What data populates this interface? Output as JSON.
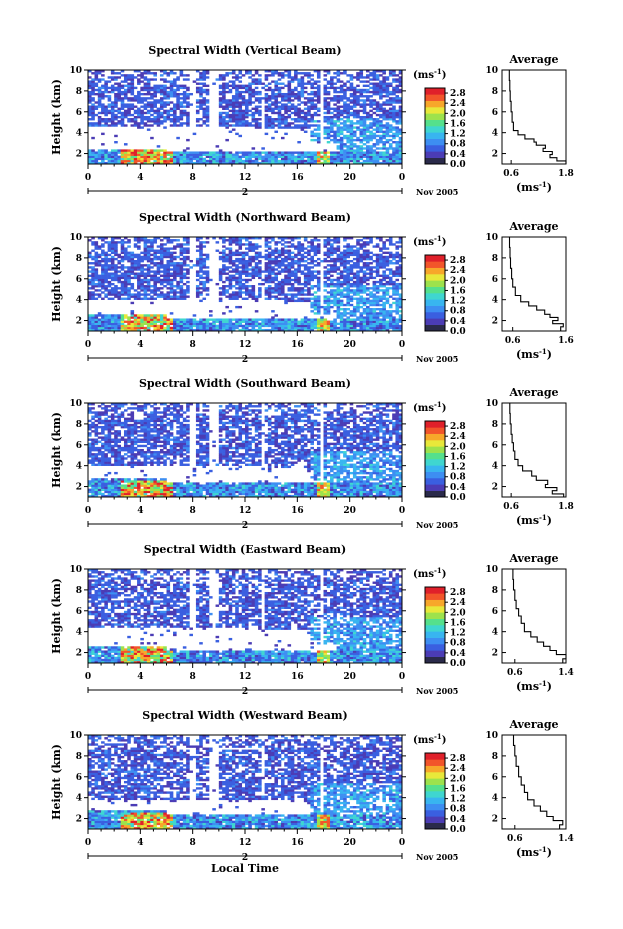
{
  "panel_titles": [
    "Spectral Width (Vertical Beam)",
    "Spectral Width (Northward Beam)",
    "Spectral Width (Southward Beam)",
    "Spectral Width (Eastward Beam)",
    "Spectral Width (Westward Beam)"
  ],
  "y_axis_label": "Height (km)",
  "x_axis_label": "Local Time",
  "date_label": "Nov 2005",
  "day_label": "2",
  "colorbar_unit_prefix": "(ms",
  "colorbar_unit_exp": "-1",
  "colorbar_unit_suffix": ")",
  "average_title": "Average",
  "average_xlabel_prefix": "(ms",
  "average_xlabel_exp": "-1",
  "average_xlabel_suffix": ")",
  "colors": {
    "colormap": [
      "#2a2a4a",
      "#4b3cb5",
      "#3a5fe0",
      "#3d8ef2",
      "#38b5f0",
      "#3fd6d0",
      "#55e08c",
      "#9de24c",
      "#e8e83a",
      "#f7a72a",
      "#f2552a",
      "#e0202a"
    ]
  },
  "chart_data": [
    {
      "type": "heatmap",
      "title": "Spectral Width (Vertical Beam)",
      "xlabel": "",
      "ylabel": "Height (km)",
      "x_ticks": [
        "0",
        "4",
        "8",
        "12",
        "16",
        "20",
        "0"
      ],
      "y_ticks": [
        "2",
        "4",
        "6",
        "8",
        "10"
      ],
      "xlim": [
        0,
        24
      ],
      "ylim": [
        1,
        10
      ],
      "colorbar_ticks": [
        "0.0",
        "0.4",
        "0.8",
        "1.2",
        "1.6",
        "2.0",
        "2.4",
        "2.8"
      ],
      "colorbar_range": [
        0,
        3
      ],
      "average": {
        "title": "Average",
        "x_ticks": [
          "0.6",
          "1.8"
        ],
        "xlim": [
          0.4,
          1.8
        ],
        "y_ticks": [
          "2",
          "4",
          "6",
          "8",
          "10"
        ],
        "profile": [
          [
            1.8,
            1.0
          ],
          [
            1.6,
            1.3
          ],
          [
            1.45,
            1.6
          ],
          [
            1.5,
            1.9
          ],
          [
            1.3,
            2.2
          ],
          [
            1.35,
            2.5
          ],
          [
            1.15,
            2.8
          ],
          [
            1.1,
            3.1
          ],
          [
            0.9,
            3.4
          ],
          [
            0.75,
            3.8
          ],
          [
            0.65,
            4.2
          ],
          [
            0.62,
            5.0
          ],
          [
            0.6,
            6.0
          ],
          [
            0.58,
            7.0
          ],
          [
            0.57,
            8.0
          ],
          [
            0.56,
            9.0
          ],
          [
            0.55,
            10.0
          ]
        ]
      }
    },
    {
      "type": "heatmap",
      "title": "Spectral Width (Northward Beam)",
      "xlabel": "",
      "ylabel": "Height (km)",
      "x_ticks": [
        "0",
        "4",
        "8",
        "12",
        "16",
        "20",
        "0"
      ],
      "y_ticks": [
        "2",
        "4",
        "6",
        "8",
        "10"
      ],
      "xlim": [
        0,
        24
      ],
      "ylim": [
        1,
        10
      ],
      "colorbar_ticks": [
        "0.0",
        "0.4",
        "0.8",
        "1.2",
        "1.6",
        "2.0",
        "2.4",
        "2.8"
      ],
      "colorbar_range": [
        0,
        3
      ],
      "average": {
        "title": "Average",
        "x_ticks": [
          "0.6",
          "1.6"
        ],
        "xlim": [
          0.4,
          1.6
        ],
        "y_ticks": [
          "2",
          "4",
          "6",
          "8",
          "10"
        ],
        "profile": [
          [
            1.5,
            1.0
          ],
          [
            1.55,
            1.4
          ],
          [
            1.35,
            1.7
          ],
          [
            1.45,
            2.0
          ],
          [
            1.3,
            2.3
          ],
          [
            1.2,
            2.6
          ],
          [
            1.05,
            3.0
          ],
          [
            0.9,
            3.4
          ],
          [
            0.75,
            3.8
          ],
          [
            0.65,
            4.4
          ],
          [
            0.6,
            5.2
          ],
          [
            0.58,
            6.0
          ],
          [
            0.56,
            7.0
          ],
          [
            0.55,
            8.0
          ],
          [
            0.54,
            9.0
          ],
          [
            0.53,
            10.0
          ]
        ]
      }
    },
    {
      "type": "heatmap",
      "title": "Spectral Width (Southward Beam)",
      "xlabel": "",
      "ylabel": "Height (km)",
      "x_ticks": [
        "0",
        "4",
        "8",
        "12",
        "16",
        "20",
        "0"
      ],
      "y_ticks": [
        "2",
        "4",
        "6",
        "8",
        "10"
      ],
      "xlim": [
        0,
        24
      ],
      "ylim": [
        1,
        10
      ],
      "colorbar_ticks": [
        "0.0",
        "0.4",
        "0.8",
        "1.2",
        "1.6",
        "2.0",
        "2.4",
        "2.8"
      ],
      "colorbar_range": [
        0,
        3
      ],
      "average": {
        "title": "Average",
        "x_ticks": [
          "0.6",
          "1.8"
        ],
        "xlim": [
          0.4,
          1.8
        ],
        "y_ticks": [
          "2",
          "4",
          "6",
          "8",
          "10"
        ],
        "profile": [
          [
            1.75,
            1.0
          ],
          [
            1.5,
            1.3
          ],
          [
            1.6,
            1.6
          ],
          [
            1.35,
            1.9
          ],
          [
            1.4,
            2.2
          ],
          [
            1.15,
            2.6
          ],
          [
            1.05,
            3.0
          ],
          [
            0.85,
            3.5
          ],
          [
            0.75,
            4.0
          ],
          [
            0.68,
            4.6
          ],
          [
            0.65,
            5.4
          ],
          [
            0.62,
            6.2
          ],
          [
            0.6,
            7.0
          ],
          [
            0.58,
            8.0
          ],
          [
            0.57,
            9.0
          ],
          [
            0.56,
            10.0
          ]
        ]
      }
    },
    {
      "type": "heatmap",
      "title": "Spectral Width (Eastward Beam)",
      "xlabel": "",
      "ylabel": "Height (km)",
      "x_ticks": [
        "0",
        "4",
        "8",
        "12",
        "16",
        "20",
        "0"
      ],
      "y_ticks": [
        "2",
        "4",
        "6",
        "8",
        "10"
      ],
      "xlim": [
        0,
        24
      ],
      "ylim": [
        1,
        10
      ],
      "colorbar_ticks": [
        "0.0",
        "0.4",
        "0.8",
        "1.2",
        "1.6",
        "2.0",
        "2.4",
        "2.8"
      ],
      "colorbar_range": [
        0,
        3
      ],
      "average": {
        "title": "Average",
        "x_ticks": [
          "0.6",
          "1.4"
        ],
        "xlim": [
          0.4,
          1.4
        ],
        "y_ticks": [
          "2",
          "4",
          "6",
          "8",
          "10"
        ],
        "profile": [
          [
            1.35,
            1.0
          ],
          [
            1.4,
            1.4
          ],
          [
            1.25,
            1.8
          ],
          [
            1.15,
            2.2
          ],
          [
            1.05,
            2.6
          ],
          [
            0.95,
            3.0
          ],
          [
            0.85,
            3.5
          ],
          [
            0.75,
            4.0
          ],
          [
            0.7,
            4.8
          ],
          [
            0.66,
            5.5
          ],
          [
            0.62,
            6.2
          ],
          [
            0.6,
            7.0
          ],
          [
            0.58,
            8.0
          ],
          [
            0.57,
            9.0
          ],
          [
            0.56,
            10.0
          ]
        ]
      }
    },
    {
      "type": "heatmap",
      "title": "Spectral Width (Westward Beam)",
      "xlabel": "Local Time",
      "ylabel": "Height (km)",
      "x_ticks": [
        "0",
        "4",
        "8",
        "12",
        "16",
        "20",
        "0"
      ],
      "y_ticks": [
        "2",
        "4",
        "6",
        "8",
        "10"
      ],
      "xlim": [
        0,
        24
      ],
      "ylim": [
        1,
        10
      ],
      "colorbar_ticks": [
        "0.0",
        "0.4",
        "0.8",
        "1.2",
        "1.6",
        "2.0",
        "2.4",
        "2.8"
      ],
      "colorbar_range": [
        0,
        3
      ],
      "average": {
        "title": "Average",
        "x_ticks": [
          "0.6",
          "1.4"
        ],
        "xlim": [
          0.4,
          1.4
        ],
        "y_ticks": [
          "2",
          "4",
          "6",
          "8",
          "10"
        ],
        "profile": [
          [
            1.3,
            1.0
          ],
          [
            1.35,
            1.4
          ],
          [
            1.2,
            1.8
          ],
          [
            1.1,
            2.2
          ],
          [
            1.0,
            2.7
          ],
          [
            0.9,
            3.2
          ],
          [
            0.8,
            3.8
          ],
          [
            0.75,
            4.5
          ],
          [
            0.7,
            5.2
          ],
          [
            0.66,
            6.0
          ],
          [
            0.62,
            7.0
          ],
          [
            0.6,
            8.0
          ],
          [
            0.58,
            9.0
          ],
          [
            0.57,
            10.0
          ]
        ]
      }
    }
  ]
}
